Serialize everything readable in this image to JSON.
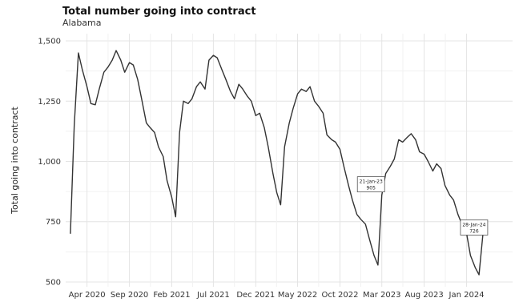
{
  "chart_data": {
    "type": "line",
    "title": "Total number going into contract",
    "subtitle": "Alabama",
    "xlabel": "",
    "ylabel": "Total going into contract",
    "ylim": [
      480,
      1530
    ],
    "y_ticks": [
      500,
      750,
      1000,
      1250,
      1500
    ],
    "y_tick_labels": [
      "500",
      "750",
      "1,000",
      "1,250",
      "1,500"
    ],
    "x_range": [
      "2020-01-15",
      "2024-06-15"
    ],
    "x_ticks": [
      "2020-04-01",
      "2020-09-01",
      "2021-02-01",
      "2021-07-01",
      "2021-12-01",
      "2022-05-01",
      "2022-10-01",
      "2023-03-01",
      "2023-08-01",
      "2024-01-01"
    ],
    "x_tick_labels": [
      "Apr 2020",
      "Sep 2020",
      "Feb 2021",
      "Jul 2021",
      "Dec 2021",
      "May 2022",
      "Oct 2022",
      "Mar 2023",
      "Aug 2023",
      "Jan 2024"
    ],
    "grid": true,
    "series": [
      {
        "color": "#333333",
        "x": [
          "2020-02-01",
          "2020-02-15",
          "2020-03-01",
          "2020-03-15",
          "2020-04-01",
          "2020-04-15",
          "2020-05-01",
          "2020-05-15",
          "2020-06-01",
          "2020-06-15",
          "2020-07-01",
          "2020-07-15",
          "2020-08-01",
          "2020-08-15",
          "2020-09-01",
          "2020-09-15",
          "2020-10-01",
          "2020-10-15",
          "2020-11-01",
          "2020-11-15",
          "2020-12-01",
          "2020-12-15",
          "2021-01-01",
          "2021-01-15",
          "2021-02-01",
          "2021-02-15",
          "2021-03-01",
          "2021-03-15",
          "2021-04-01",
          "2021-04-15",
          "2021-05-01",
          "2021-05-15",
          "2021-06-01",
          "2021-06-15",
          "2021-07-01",
          "2021-07-15",
          "2021-08-01",
          "2021-08-15",
          "2021-09-01",
          "2021-09-15",
          "2021-10-01",
          "2021-10-15",
          "2021-11-01",
          "2021-11-15",
          "2021-12-01",
          "2021-12-15",
          "2022-01-01",
          "2022-01-15",
          "2022-02-01",
          "2022-02-15",
          "2022-03-01",
          "2022-03-15",
          "2022-04-01",
          "2022-04-15",
          "2022-05-01",
          "2022-05-15",
          "2022-06-01",
          "2022-06-15",
          "2022-07-01",
          "2022-07-15",
          "2022-08-01",
          "2022-08-15",
          "2022-09-01",
          "2022-09-15",
          "2022-10-01",
          "2022-10-15",
          "2022-11-01",
          "2022-11-15",
          "2022-12-01",
          "2022-12-15",
          "2023-01-01",
          "2023-01-15",
          "2023-02-01",
          "2023-02-15",
          "2023-03-01",
          "2023-03-15",
          "2023-04-01",
          "2023-04-15",
          "2023-05-01",
          "2023-05-15",
          "2023-06-01",
          "2023-06-15",
          "2023-07-01",
          "2023-07-15",
          "2023-08-01",
          "2023-08-15",
          "2023-09-01",
          "2023-09-15",
          "2023-10-01",
          "2023-10-15",
          "2023-11-01",
          "2023-11-15",
          "2023-12-01",
          "2023-12-15",
          "2024-01-01",
          "2024-01-15",
          "2024-02-01",
          "2024-02-15",
          "2024-03-01"
        ],
        "y": [
          700,
          1150,
          1450,
          1380,
          1310,
          1240,
          1235,
          1300,
          1370,
          1390,
          1420,
          1460,
          1420,
          1370,
          1410,
          1400,
          1340,
          1260,
          1160,
          1140,
          1120,
          1060,
          1020,
          920,
          850,
          770,
          1120,
          1250,
          1240,
          1260,
          1310,
          1330,
          1300,
          1420,
          1440,
          1430,
          1380,
          1340,
          1290,
          1260,
          1320,
          1300,
          1270,
          1250,
          1190,
          1200,
          1140,
          1060,
          950,
          870,
          820,
          1060,
          1160,
          1220,
          1280,
          1300,
          1290,
          1310,
          1250,
          1230,
          1200,
          1110,
          1090,
          1080,
          1050,
          980,
          900,
          840,
          780,
          760,
          740,
          680,
          610,
          570,
          860,
          950,
          980,
          1010,
          1090,
          1080,
          1100,
          1115,
          1090,
          1040,
          1030,
          1000,
          960,
          990,
          970,
          900,
          860,
          840,
          780,
          740,
          700,
          610,
          560,
          530,
          710
        ]
      }
    ],
    "annotations": [
      {
        "date_label": "21-Jan-23",
        "value_label": "905",
        "x": "2023-01-21",
        "y": 905
      },
      {
        "date_label": "28-Jan-24",
        "value_label": "726",
        "x": "2024-01-28",
        "y": 726
      }
    ]
  }
}
